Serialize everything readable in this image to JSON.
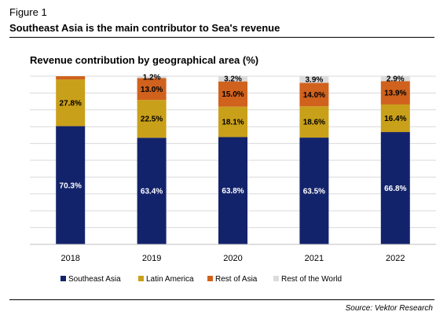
{
  "figure": {
    "label": "Figure 1",
    "title": "Southeast Asia is the main contributor to Sea's revenue",
    "source": "Source: Vektor Research"
  },
  "colors": {
    "Southeast Asia": "#13236b",
    "Latin America": "#c9a01a",
    "Rest of Asia": "#d0621d",
    "Rest of the World": "#dcdcdc"
  },
  "chart_data": {
    "type": "bar",
    "stacked": true,
    "title": "Revenue contribution by geographical area (%)",
    "categories": [
      "2018",
      "2019",
      "2020",
      "2021",
      "2022"
    ],
    "ylim": [
      0,
      100
    ],
    "grid": true,
    "legend_position": "bottom",
    "series": [
      {
        "name": "Southeast Asia",
        "values": [
          70.3,
          63.4,
          63.8,
          63.5,
          66.8
        ],
        "labels": [
          "70.3%",
          "63.4%",
          "63.8%",
          "63.5%",
          "66.8%"
        ]
      },
      {
        "name": "Latin America",
        "values": [
          27.8,
          22.5,
          18.1,
          18.6,
          16.4
        ],
        "labels": [
          "27.8%",
          "22.5%",
          "18.1%",
          "18.6%",
          "16.4%"
        ]
      },
      {
        "name": "Rest of Asia",
        "values": [
          1.9,
          13.0,
          15.0,
          14.0,
          13.9
        ],
        "labels": [
          "",
          "13.0%",
          "15.0%",
          "14.0%",
          "13.9%"
        ]
      },
      {
        "name": "Rest of the World",
        "values": [
          0.0,
          1.2,
          3.2,
          3.9,
          2.9
        ],
        "labels": [
          "",
          "1.2%",
          "3.2%",
          "3.9%",
          "2.9%"
        ]
      }
    ]
  }
}
